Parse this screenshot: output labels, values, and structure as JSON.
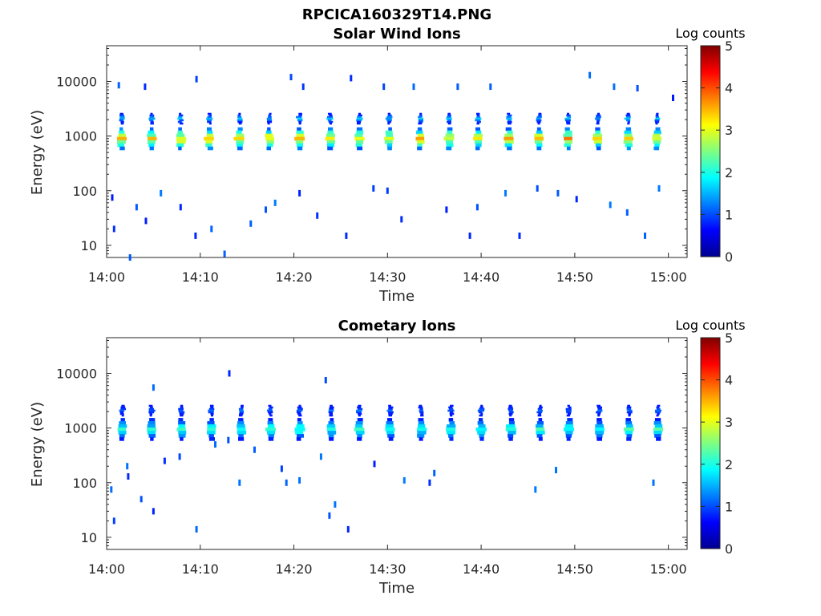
{
  "figure_title": "RPCICA160329T14.PNG",
  "chart_data": [
    {
      "type": "heatmap",
      "title": "Solar Wind Ions",
      "xlabel": "Time",
      "ylabel": "Energy (eV)",
      "y_scale": "log",
      "ylim": [
        6,
        45000
      ],
      "xlim_minutes": [
        0,
        62
      ],
      "x_ticks": [
        "14:00",
        "14:10",
        "14:20",
        "14:30",
        "14:40",
        "14:50",
        "15:00"
      ],
      "y_ticks": [
        "10",
        "100",
        "1000",
        "10000"
      ],
      "colorbar": {
        "label": "Log counts",
        "range": [
          0,
          5
        ],
        "ticks": [
          "0",
          "1",
          "2",
          "3",
          "4",
          "5"
        ]
      },
      "bursts_minutes": [
        1.6,
        4.8,
        7.9,
        11.0,
        14.2,
        17.4,
        20.6,
        23.9,
        27.0,
        30.2,
        33.5,
        36.6,
        39.7,
        43.0,
        46.2,
        49.3,
        52.5,
        55.7,
        58.8
      ],
      "main_band_eV": 900,
      "main_band_peak_log_counts": 3.5,
      "upper_band_eV": 2100,
      "upper_band_peak_log_counts": 1.6,
      "scattered_points": [
        [
          0.6,
          75
        ],
        [
          0.8,
          20
        ],
        [
          2.5,
          6
        ],
        [
          3.2,
          50
        ],
        [
          4.2,
          28
        ],
        [
          5.8,
          90
        ],
        [
          7.9,
          50
        ],
        [
          9.5,
          15
        ],
        [
          11.2,
          20
        ],
        [
          12.6,
          7
        ],
        [
          15.4,
          25
        ],
        [
          17.0,
          45
        ],
        [
          18.0,
          60
        ],
        [
          20.6,
          90
        ],
        [
          22.5,
          35
        ],
        [
          25.6,
          15
        ],
        [
          28.5,
          110
        ],
        [
          30.0,
          100
        ],
        [
          31.5,
          30
        ],
        [
          36.3,
          45
        ],
        [
          38.8,
          15
        ],
        [
          39.6,
          50
        ],
        [
          42.6,
          90
        ],
        [
          44.1,
          15
        ],
        [
          46.0,
          110
        ],
        [
          48.2,
          90
        ],
        [
          50.2,
          70
        ],
        [
          53.8,
          55
        ],
        [
          55.6,
          40
        ],
        [
          57.5,
          15
        ],
        [
          59.0,
          110
        ],
        [
          1.3,
          8500
        ],
        [
          4.1,
          8000
        ],
        [
          9.6,
          11000
        ],
        [
          19.7,
          12000
        ],
        [
          21.0,
          8000
        ],
        [
          26.1,
          11500
        ],
        [
          29.6,
          8000
        ],
        [
          32.8,
          8000
        ],
        [
          37.5,
          8000
        ],
        [
          41.0,
          8000
        ],
        [
          51.6,
          13000
        ],
        [
          54.2,
          8000
        ],
        [
          56.7,
          7500
        ],
        [
          60.5,
          5000
        ]
      ]
    },
    {
      "type": "heatmap",
      "title": "Cometary Ions",
      "xlabel": "Time",
      "ylabel": "Energy (eV)",
      "y_scale": "log",
      "ylim": [
        6,
        45000
      ],
      "xlim_minutes": [
        0,
        62
      ],
      "x_ticks": [
        "14:00",
        "14:10",
        "14:20",
        "14:30",
        "14:40",
        "14:50",
        "15:00"
      ],
      "y_ticks": [
        "10",
        "100",
        "1000",
        "10000"
      ],
      "colorbar": {
        "label": "Log counts",
        "range": [
          0,
          5
        ],
        "ticks": [
          "0",
          "1",
          "2",
          "3",
          "4",
          "5"
        ]
      },
      "bursts_minutes": [
        1.7,
        4.8,
        8.0,
        11.2,
        14.4,
        17.5,
        20.6,
        24.0,
        27.0,
        30.3,
        33.6,
        36.8,
        40.0,
        43.2,
        46.3,
        49.4,
        52.6,
        55.8,
        58.9
      ],
      "main_band_eV": 950,
      "main_band_peak_log_counts": 2.2,
      "upper_band_eV": 2100,
      "upper_band_peak_log_counts": 1.2,
      "scattered_points": [
        [
          0.5,
          75
        ],
        [
          0.8,
          20
        ],
        [
          2.2,
          200
        ],
        [
          2.3,
          130
        ],
        [
          3.7,
          50
        ],
        [
          5.0,
          30
        ],
        [
          6.2,
          250
        ],
        [
          7.8,
          300
        ],
        [
          9.6,
          14
        ],
        [
          11.6,
          500
        ],
        [
          13.0,
          600
        ],
        [
          14.2,
          100
        ],
        [
          15.8,
          400
        ],
        [
          18.7,
          180
        ],
        [
          19.2,
          100
        ],
        [
          20.6,
          110
        ],
        [
          22.9,
          300
        ],
        [
          23.8,
          25
        ],
        [
          24.4,
          40
        ],
        [
          25.8,
          14
        ],
        [
          28.6,
          220
        ],
        [
          31.8,
          110
        ],
        [
          35.0,
          150
        ],
        [
          34.5,
          100
        ],
        [
          45.8,
          75
        ],
        [
          48.0,
          170
        ],
        [
          58.4,
          100
        ],
        [
          5.0,
          5500
        ],
        [
          13.1,
          10000
        ],
        [
          23.4,
          7500
        ]
      ]
    }
  ]
}
